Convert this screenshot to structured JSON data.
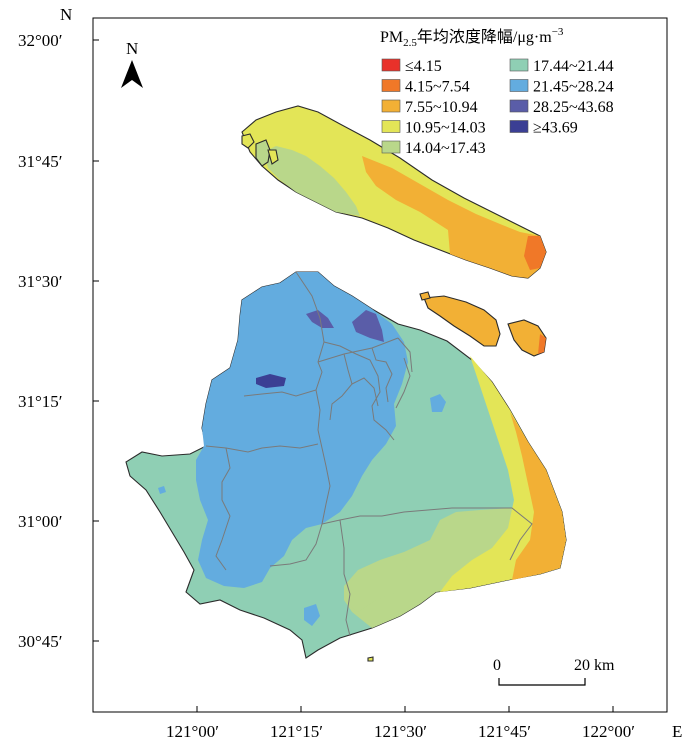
{
  "map": {
    "axes": {
      "top_letter": "N",
      "right_letter": "E",
      "lat_ticks": [
        "32°00′",
        "31°45′",
        "31°30′",
        "31°15′",
        "31°00′",
        "30°45′"
      ],
      "lon_ticks": [
        "121°00′",
        "121°15′",
        "121°30′",
        "121°45′",
        "122°00′"
      ]
    },
    "north_arrow": {
      "label": "N"
    },
    "legend": {
      "title_main": "PM",
      "title_sub": "2.5",
      "title_rest": "年均浓度降幅/μg·m",
      "title_sup": "−3",
      "items": [
        {
          "label": "≤4.15",
          "color": "#e8312a"
        },
        {
          "label": "4.15~7.54",
          "color": "#f07828"
        },
        {
          "label": "7.55~10.94",
          "color": "#f2b035"
        },
        {
          "label": "10.95~14.03",
          "color": "#e3e557"
        },
        {
          "label": "14.04~17.43",
          "color": "#b9d78a"
        },
        {
          "label": "17.44~21.44",
          "color": "#8fcfb4"
        },
        {
          "label": "21.45~28.24",
          "color": "#63acdf"
        },
        {
          "label": "28.25~43.68",
          "color": "#5a5da8"
        },
        {
          "label": "≥43.69",
          "color": "#3b3f94"
        }
      ]
    },
    "scale_bar": {
      "start_label": "0",
      "end_label": "20 km"
    }
  }
}
